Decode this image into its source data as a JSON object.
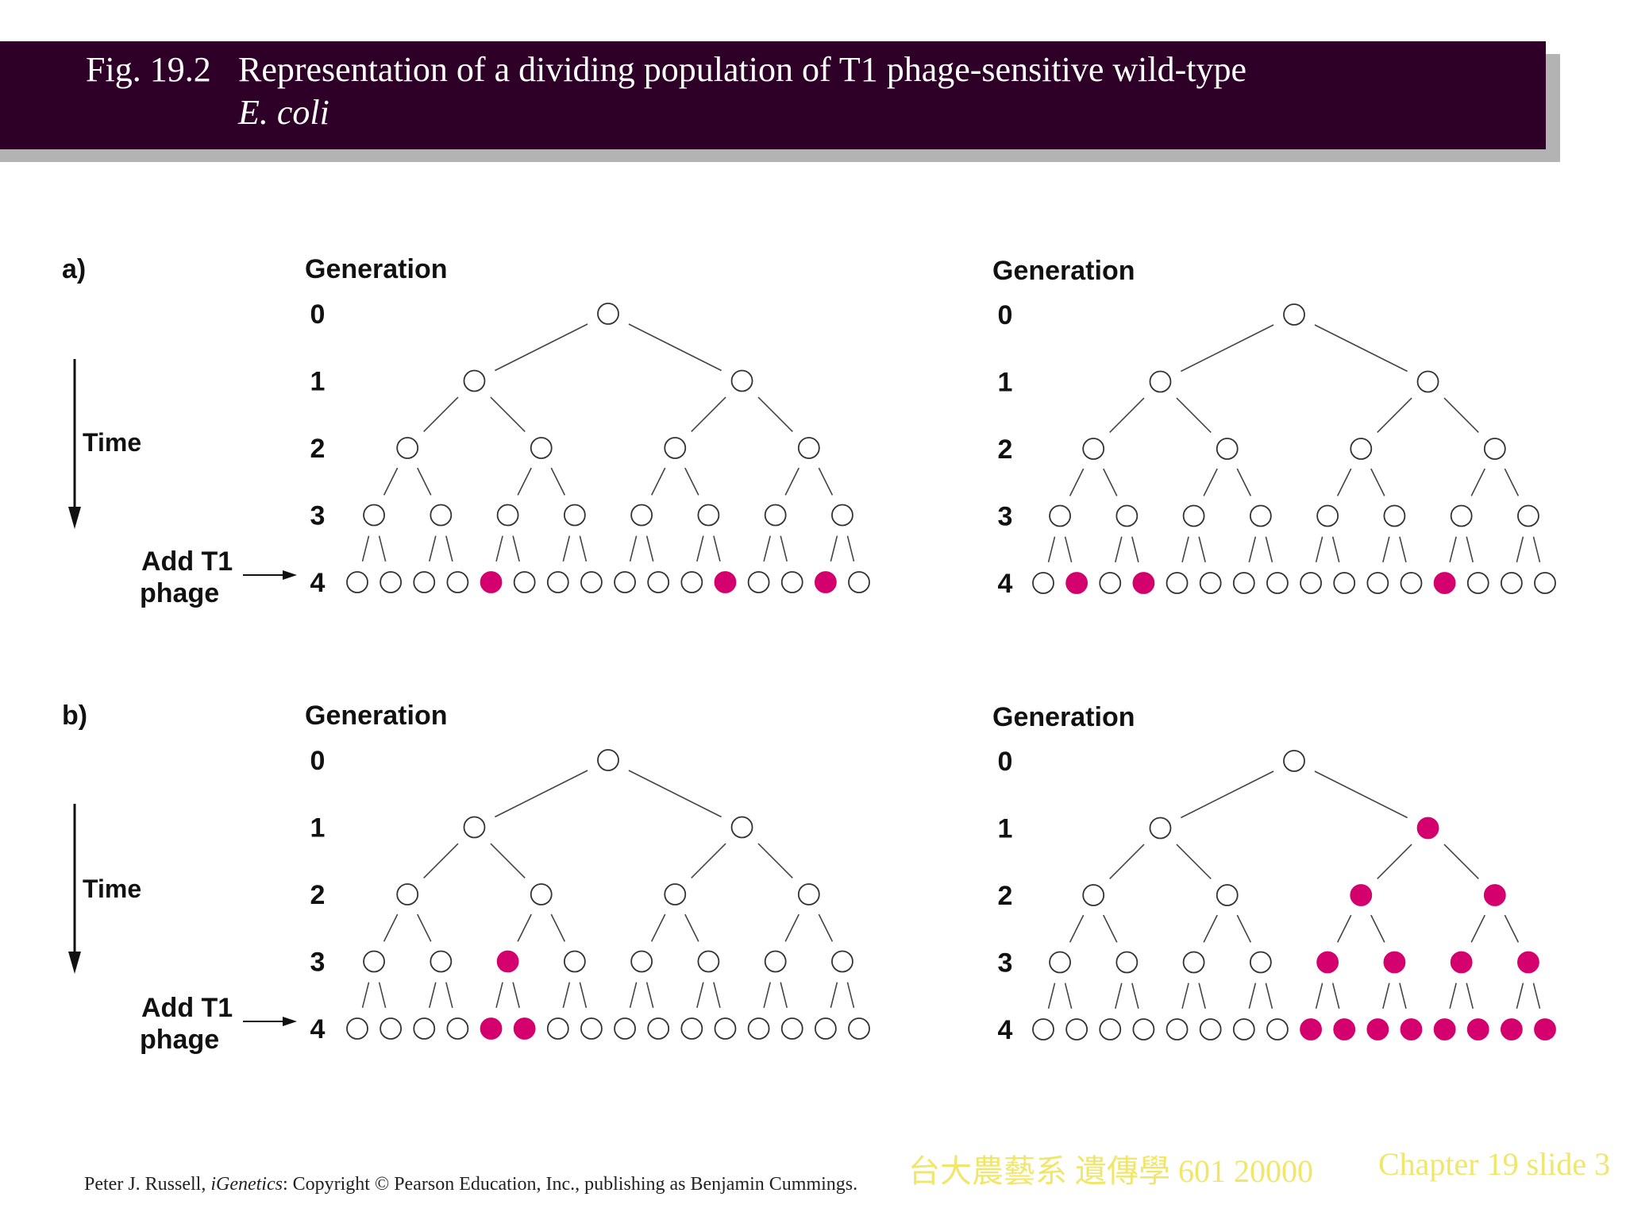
{
  "header": {
    "fig_number": "Fig. 19.2",
    "title_line1": "Representation of a dividing population of T1 phage-sensitive wild-type",
    "title_line2": "E. coli"
  },
  "colors": {
    "header_bg": "#2e0028",
    "resistant_fill": "#d4006e",
    "footer_text": "#f0e76a"
  },
  "panels": [
    {
      "label": "a)",
      "time_label": "Time",
      "add_label_1": "Add T1",
      "add_label_2": "phage",
      "left_tree": {
        "axis_title": "Generation",
        "generations": [
          "0",
          "1",
          "2",
          "3",
          "4"
        ],
        "resistant": {
          "4": [
            4,
            11,
            14
          ]
        }
      },
      "right_tree": {
        "axis_title": "Generation",
        "generations": [
          "0",
          "1",
          "2",
          "3",
          "4"
        ],
        "resistant": {
          "4": [
            1,
            3,
            12
          ]
        }
      }
    },
    {
      "label": "b)",
      "time_label": "Time",
      "add_label_1": "Add T1",
      "add_label_2": "phage",
      "left_tree": {
        "axis_title": "Generation",
        "generations": [
          "0",
          "1",
          "2",
          "3",
          "4"
        ],
        "resistant": {
          "3": [
            2
          ],
          "4": [
            4,
            5
          ]
        }
      },
      "right_tree": {
        "axis_title": "Generation",
        "generations": [
          "0",
          "1",
          "2",
          "3",
          "4"
        ],
        "resistant": {
          "1": [
            1
          ],
          "2": [
            2,
            3
          ],
          "3": [
            4,
            5,
            6,
            7
          ],
          "4": [
            8,
            9,
            10,
            11,
            12,
            13,
            14,
            15
          ]
        }
      }
    }
  ],
  "footer": {
    "credit_author": "Peter J. Russell, ",
    "credit_book": "iGenetics",
    "credit_rest": ": Copyright © Pearson Education, Inc., publishing as Benjamin Cummings.",
    "course": "台大農藝系 遺傳學 601 20000",
    "slide": "Chapter 19 slide 3"
  }
}
